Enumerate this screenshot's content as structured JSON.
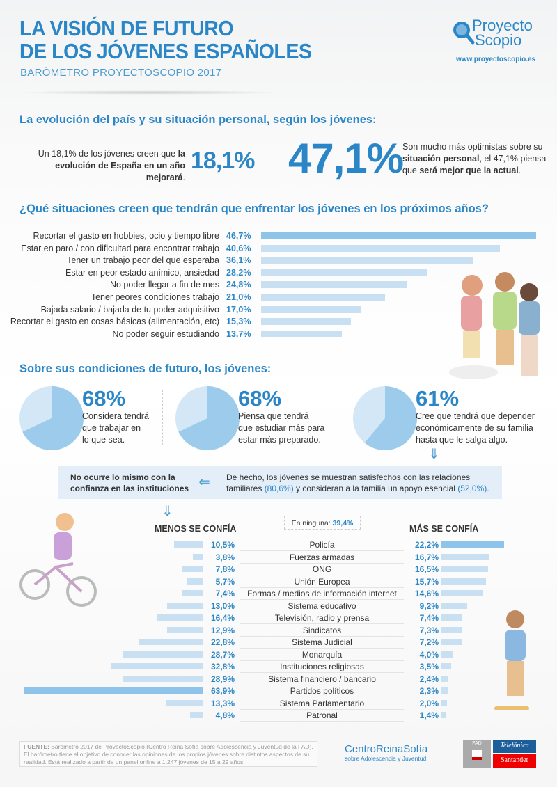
{
  "header": {
    "title_line1": "LA VISIÓN DE FUTURO",
    "title_line2": "DE LOS JÓVENES ESPAÑOLES",
    "subtitle": "BARÓMETRO PROYECTOSCOPIO 2017",
    "logo_line1": "Proyecto",
    "logo_line2": "Scopio",
    "url": "www.proyectoscopio.es"
  },
  "evolution": {
    "heading": "La evolución del país y su situación personal, según los jóvenes:",
    "left_text_plain": "Un 18,1% de los jóvenes creen que ",
    "left_text_bold1": "la",
    "left_text_bold2": "evolución de España en un año mejorará",
    "left_pct": "18,1%",
    "right_pct": "47,1%",
    "right_text_1": "Son mucho más optimistas sobre su",
    "right_text_bold1": "situación personal",
    "right_text_2": ", el 47,1% piensa",
    "right_text_3": "que ",
    "right_text_bold2": "será mejor que la actual"
  },
  "situations": {
    "heading": "¿Qué situaciones creen que tendrán que enfrentar los jóvenes en los próximos años?"
  },
  "future": {
    "heading": "Sobre sus condiciones de futuro, los jóvenes:",
    "items": [
      {
        "pct": "68%",
        "value": 68,
        "lines": [
          "Considera tendrá",
          "que trabajar en",
          "lo que sea."
        ]
      },
      {
        "pct": "68%",
        "value": 68,
        "lines": [
          "Piensa que tendrá",
          "que estudiar más para",
          "estar más preparado."
        ]
      },
      {
        "pct": "61%",
        "value": 61,
        "lines": [
          "Cree que tendrá que depender",
          "económicamente de su familia",
          "hasta que le salga algo."
        ]
      }
    ]
  },
  "infobox": {
    "left_line1": "No ocurre lo mismo con la",
    "left_line2": "confianza en las instituciones",
    "right_1": "De hecho, los jóvenes se muestran satisfechos con las relaciones",
    "right_2": "familiares ",
    "right_pct1": "(80,6%)",
    "right_3": " y consideran a la familia un apoyo esencial ",
    "right_pct2": "(52,0%)",
    "right_4": "."
  },
  "trust": {
    "less_label": "MENOS SE CONFÍA",
    "more_label": "MÁS SE CONFÍA",
    "none_label": "En ninguna: ",
    "none_value": "39,4%"
  },
  "footer": {
    "source_label": "FUENTE:",
    "source_text": " Barómetro 2017 de ProyectoScopio (Centro Reina Sofía sobre Adolescencia y Juventud de la FAD). El barómetro tiene el objetivo de conocer las opiniones de los propios jóvenes sobre distintos aspectos de su realidad. Está realizado a partir de un panel online a 1.247 jóvenes de 15 a 29 años.",
    "crs_logo_1": "CentroReinaSofía",
    "crs_logo_2": "sobre Adolescencia y Juventud",
    "fad": "FAD",
    "telefonica": "Telefónica",
    "santander": "Santander"
  },
  "colors": {
    "accent": "#2a86c6",
    "bar": "#c9e0f3",
    "bar_highlight": "#8ec3ea",
    "box": "#e3eef8"
  },
  "chart_data": [
    {
      "type": "bar",
      "orientation": "horizontal",
      "categories": [
        "Recortar el gasto en hobbies, ocio y tiempo libre",
        "Estar en paro / con dificultad para encontrar trabajo",
        "Tener un trabajo peor del que esperaba",
        "Estar en peor estado anímico, ansiedad",
        "No poder llegar a fin de mes",
        "Tener peores condiciones trabajo",
        "Bajada salario / bajada de tu poder adquisitivo",
        "Recortar el gasto en cosas básicas (alimentación, etc)",
        "No poder seguir estudiando"
      ],
      "values": [
        46.7,
        40.6,
        36.1,
        28.2,
        24.8,
        21.0,
        17.0,
        15.3,
        13.7
      ],
      "labels": [
        "46,7%",
        "40,6%",
        "36,1%",
        "28,2%",
        "24,8%",
        "21,0%",
        "17,0%",
        "15,3%",
        "13,7%"
      ]
    },
    {
      "type": "pie",
      "values": [
        68,
        68,
        61
      ]
    },
    {
      "type": "bar",
      "orientation": "horizontal-diverging",
      "categories": [
        "Policía",
        "Fuerzas armadas",
        "ONG",
        "Unión Europea",
        "Formas / medios de información internet",
        "Sistema educativo",
        "Televisión, radio y prensa",
        "Sindicatos",
        "Sistema Judicial",
        "Monarquía",
        "Instituciones religiosas",
        "Sistema financiero / bancario",
        "Partidos políticos",
        "Sistema Parlamentario",
        "Patronal"
      ],
      "series": [
        {
          "name": "MENOS SE CONFÍA",
          "values": [
            10.5,
            3.8,
            7.8,
            5.7,
            7.4,
            13.0,
            16.4,
            12.9,
            22.8,
            28.7,
            32.8,
            28.9,
            63.9,
            13.3,
            4.8
          ],
          "labels": [
            "10,5%",
            "3,8%",
            "7,8%",
            "5,7%",
            "7,4%",
            "13,0%",
            "16,4%",
            "12,9%",
            "22,8%",
            "28,7%",
            "32,8%",
            "28,9%",
            "63,9%",
            "13,3%",
            "4,8%"
          ]
        },
        {
          "name": "MÁS SE CONFÍA",
          "values": [
            22.2,
            16.7,
            16.5,
            15.7,
            14.6,
            9.2,
            7.4,
            7.3,
            7.2,
            4.0,
            3.5,
            2.4,
            2.3,
            2.0,
            1.4
          ],
          "labels": [
            "22,2%",
            "16,7%",
            "16,5%",
            "15,7%",
            "14,6%",
            "9,2%",
            "7,4%",
            "7,3%",
            "7,2%",
            "4,0%",
            "3,5%",
            "2,4%",
            "2,3%",
            "2,0%",
            "1,4%"
          ]
        }
      ]
    }
  ]
}
